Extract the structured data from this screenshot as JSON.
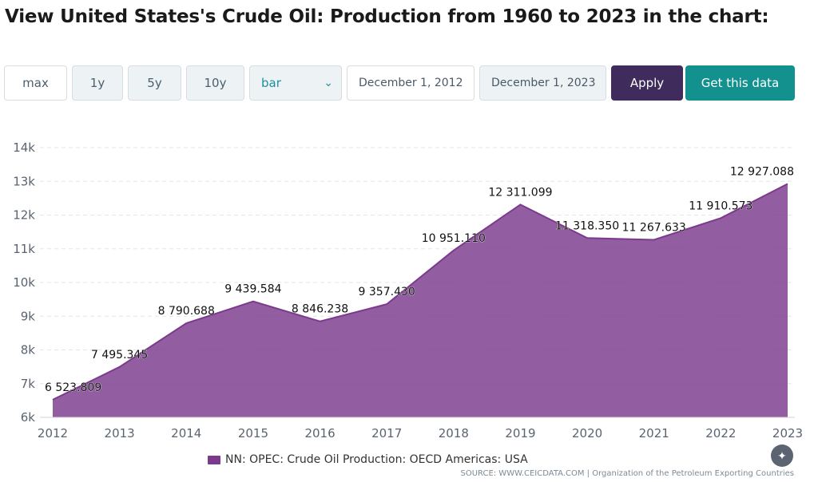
{
  "title": "View United States's Crude Oil: Production from 1960 to 2023 in the chart:",
  "toolbar": {
    "range_buttons": [
      "max",
      "1y",
      "5y",
      "10y"
    ],
    "chart_type": "bar",
    "start_date": "December 1, 2012",
    "end_date": "December 1, 2023",
    "apply_label": "Apply",
    "get_data_label": "Get this data"
  },
  "colors": {
    "series": "#7b3a8c",
    "apply": "#3f2b5c",
    "get_data": "#12918f"
  },
  "chart_data": {
    "type": "area",
    "x": [
      2012,
      2013,
      2014,
      2015,
      2016,
      2017,
      2018,
      2019,
      2020,
      2021,
      2022,
      2023
    ],
    "series": [
      {
        "name": "NN: OPEC: Crude Oil Production: OECD Americas: USA",
        "values": [
          6523.809,
          7495.345,
          8790.688,
          9439.584,
          8846.238,
          9357.43,
          10951.11,
          12311.099,
          11318.35,
          11267.633,
          11910.573,
          12927.088
        ],
        "labels": [
          "6 523.809",
          "7 495.345",
          "8 790.688",
          "9 439.584",
          "8 846.238",
          "9 357.430",
          "10 951.110",
          "12 311.099",
          "11 318.350",
          "11 267.633",
          "11 910.573",
          "12 927.088"
        ]
      }
    ],
    "y_ticks": [
      "6k",
      "7k",
      "8k",
      "9k",
      "10k",
      "11k",
      "12k",
      "13k",
      "14k"
    ],
    "ylim": [
      6000,
      14000
    ],
    "grid": true,
    "legend": "bottom-center"
  },
  "source": "SOURCE: WWW.CEICDATA.COM | Organization of the Petroleum Exporting Countries",
  "magic_icon": "magic-wand-icon"
}
